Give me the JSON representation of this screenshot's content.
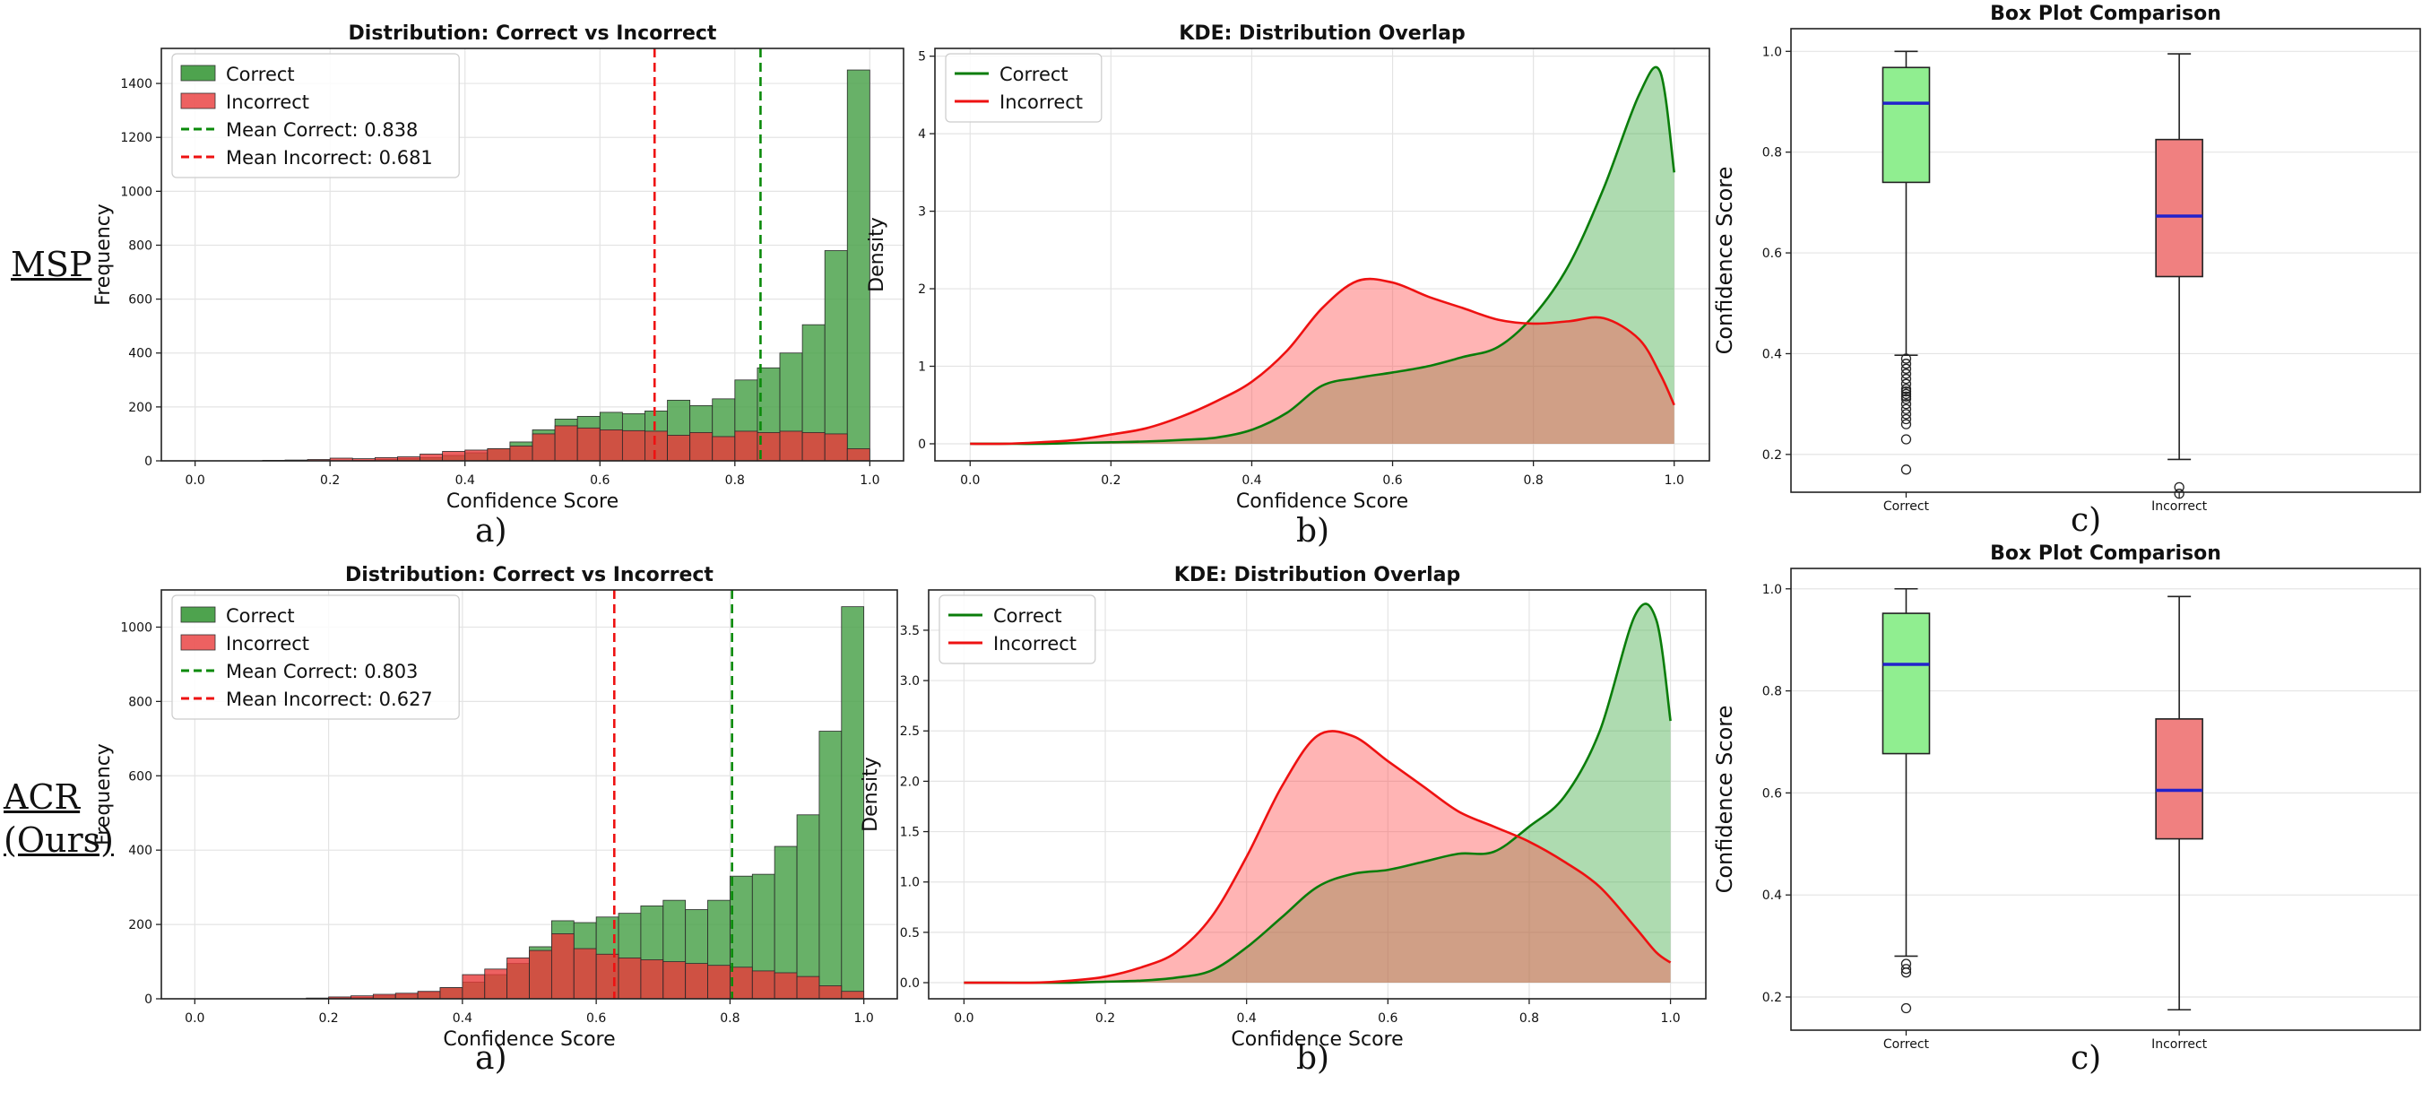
{
  "row_labels": [
    {
      "line1": "MSP",
      "line2": ""
    },
    {
      "line1": "ACR",
      "line2": "(Ours)"
    }
  ],
  "panel_letters": [
    "a)",
    "b)",
    "c)",
    "a)",
    "b)",
    "c)"
  ],
  "colors": {
    "correct_hist": "#4ea34e",
    "incorrect_hist": "#e83a3a",
    "correct_line": "#0a7d0a",
    "incorrect_line": "#ee1111",
    "correct_fill": "#a6d6a0",
    "incorrect_fill": "#f8a8a8",
    "overlap_fill": "#c4907a",
    "box_correct": "#90ee90",
    "box_incorrect": "#f08080",
    "median": "#2222cc"
  },
  "chart_data": [
    {
      "type": "bar",
      "kind": "histogram",
      "title": "Distribution: Correct vs Incorrect",
      "xlabel": "Confidence Score",
      "ylabel": "Frequency",
      "xlim": [
        -0.05,
        1.05
      ],
      "ylim": [
        0,
        1530
      ],
      "xticks": [
        "0.0",
        "0.2",
        "0.4",
        "0.6",
        "0.8",
        "1.0"
      ],
      "yticks": [
        "0",
        "200",
        "400",
        "600",
        "800",
        "1000",
        "1200",
        "1400"
      ],
      "bin_width": 0.0333,
      "bin_centers": [
        0.0167,
        0.05,
        0.0833,
        0.1167,
        0.15,
        0.1833,
        0.2167,
        0.25,
        0.2833,
        0.3167,
        0.35,
        0.3833,
        0.4167,
        0.45,
        0.4833,
        0.5167,
        0.55,
        0.5833,
        0.6167,
        0.65,
        0.6833,
        0.7167,
        0.75,
        0.7833,
        0.8167,
        0.85,
        0.8833,
        0.9167,
        0.95,
        0.9833
      ],
      "series": [
        {
          "name": "Correct",
          "values": [
            0,
            0,
            0,
            0,
            0,
            0,
            0,
            2,
            5,
            8,
            12,
            20,
            30,
            45,
            70,
            115,
            155,
            165,
            180,
            175,
            185,
            225,
            205,
            230,
            300,
            345,
            400,
            505,
            780,
            1450
          ]
        },
        {
          "name": "Incorrect",
          "values": [
            0,
            0,
            0,
            2,
            3,
            5,
            10,
            8,
            12,
            15,
            25,
            35,
            40,
            45,
            55,
            100,
            130,
            122,
            115,
            112,
            110,
            95,
            105,
            90,
            110,
            105,
            110,
            105,
            100,
            45
          ]
        }
      ],
      "mean_lines": [
        {
          "name": "Mean Correct: 0.838",
          "value": 0.838
        },
        {
          "name": "Mean Incorrect: 0.681",
          "value": 0.681
        }
      ],
      "legend": "top-left",
      "grid": true
    },
    {
      "type": "area",
      "kind": "kde",
      "title": "KDE: Distribution Overlap",
      "xlabel": "Confidence Score",
      "ylabel": "Density",
      "xlim": [
        -0.05,
        1.05
      ],
      "ylim": [
        -0.22,
        5.1
      ],
      "xticks": [
        "0.0",
        "0.2",
        "0.4",
        "0.6",
        "0.8",
        "1.0"
      ],
      "yticks": [
        "0",
        "1",
        "2",
        "3",
        "4",
        "5"
      ],
      "x": [
        0,
        0.05,
        0.1,
        0.15,
        0.2,
        0.25,
        0.3,
        0.35,
        0.4,
        0.45,
        0.5,
        0.55,
        0.6,
        0.65,
        0.7,
        0.75,
        0.8,
        0.85,
        0.9,
        0.95,
        0.98,
        1.0
      ],
      "series": [
        {
          "name": "Correct",
          "values": [
            0,
            0,
            0,
            0.01,
            0.02,
            0.03,
            0.05,
            0.08,
            0.18,
            0.4,
            0.75,
            0.85,
            0.92,
            1.0,
            1.12,
            1.25,
            1.65,
            2.3,
            3.3,
            4.5,
            4.8,
            3.5
          ]
        },
        {
          "name": "Incorrect",
          "values": [
            0,
            0,
            0.02,
            0.05,
            0.12,
            0.2,
            0.35,
            0.55,
            0.8,
            1.2,
            1.75,
            2.1,
            2.08,
            1.9,
            1.75,
            1.6,
            1.55,
            1.58,
            1.62,
            1.35,
            0.9,
            0.5
          ]
        }
      ],
      "legend": "top-left",
      "grid": true
    },
    {
      "type": "box",
      "title": "Box Plot Comparison",
      "xlabel": "",
      "ylabel": "Confidence Score",
      "ylim": [
        0.125,
        1.045
      ],
      "yticks": [
        "0.2",
        "0.4",
        "0.6",
        "0.8",
        "1.0"
      ],
      "categories": [
        "Correct",
        "Incorrect"
      ],
      "boxes": [
        {
          "q1": 0.74,
          "median": 0.897,
          "q3": 0.968,
          "whisker_low": 0.397,
          "whisker_high": 1.0,
          "outliers": [
            0.39,
            0.38,
            0.37,
            0.36,
            0.35,
            0.34,
            0.33,
            0.325,
            0.32,
            0.315,
            0.31,
            0.3,
            0.29,
            0.28,
            0.27,
            0.26,
            0.23,
            0.17
          ]
        },
        {
          "q1": 0.553,
          "median": 0.673,
          "q3": 0.825,
          "whisker_low": 0.19,
          "whisker_high": 0.995,
          "outliers": [
            0.135,
            0.122
          ]
        }
      ],
      "grid": true
    },
    {
      "type": "bar",
      "kind": "histogram",
      "title": "Distribution: Correct vs Incorrect",
      "xlabel": "Confidence Score",
      "ylabel": "Frequency",
      "xlim": [
        -0.05,
        1.05
      ],
      "ylim": [
        0,
        1100
      ],
      "xticks": [
        "0.0",
        "0.2",
        "0.4",
        "0.6",
        "0.8",
        "1.0"
      ],
      "yticks": [
        "0",
        "200",
        "400",
        "600",
        "800",
        "1000"
      ],
      "bin_width": 0.0333,
      "bin_centers": [
        0.0167,
        0.05,
        0.0833,
        0.1167,
        0.15,
        0.1833,
        0.2167,
        0.25,
        0.2833,
        0.3167,
        0.35,
        0.3833,
        0.4167,
        0.45,
        0.4833,
        0.5167,
        0.55,
        0.5833,
        0.6167,
        0.65,
        0.6833,
        0.7167,
        0.75,
        0.7833,
        0.8167,
        0.85,
        0.8833,
        0.9167,
        0.95,
        0.9833
      ],
      "series": [
        {
          "name": "Correct",
          "values": [
            0,
            0,
            0,
            0,
            0,
            0,
            2,
            4,
            8,
            12,
            18,
            30,
            45,
            65,
            95,
            140,
            210,
            205,
            220,
            230,
            250,
            265,
            240,
            265,
            330,
            335,
            410,
            495,
            720,
            1055
          ]
        },
        {
          "name": "Incorrect",
          "values": [
            0,
            0,
            0,
            0,
            0,
            2,
            5,
            8,
            12,
            15,
            20,
            30,
            65,
            80,
            110,
            130,
            175,
            135,
            120,
            110,
            105,
            100,
            95,
            90,
            85,
            75,
            70,
            60,
            35,
            20
          ]
        }
      ],
      "mean_lines": [
        {
          "name": "Mean Correct: 0.803",
          "value": 0.803
        },
        {
          "name": "Mean Incorrect: 0.627",
          "value": 0.627
        }
      ],
      "legend": "top-left",
      "grid": true
    },
    {
      "type": "area",
      "kind": "kde",
      "title": "KDE: Distribution Overlap",
      "xlabel": "Confidence Score",
      "ylabel": "Density",
      "xlim": [
        -0.05,
        1.05
      ],
      "ylim": [
        -0.16,
        3.9
      ],
      "xticks": [
        "0.0",
        "0.2",
        "0.4",
        "0.6",
        "0.8",
        "1.0"
      ],
      "yticks": [
        "0.0",
        "0.5",
        "1.0",
        "1.5",
        "2.0",
        "2.5",
        "3.0",
        "3.5"
      ],
      "x": [
        0,
        0.05,
        0.1,
        0.15,
        0.2,
        0.25,
        0.3,
        0.35,
        0.4,
        0.45,
        0.5,
        0.55,
        0.6,
        0.65,
        0.7,
        0.75,
        0.8,
        0.85,
        0.9,
        0.95,
        0.98,
        1.0
      ],
      "series": [
        {
          "name": "Correct",
          "values": [
            0,
            0,
            0,
            0,
            0.01,
            0.02,
            0.05,
            0.12,
            0.35,
            0.65,
            0.95,
            1.08,
            1.12,
            1.2,
            1.28,
            1.3,
            1.55,
            1.85,
            2.5,
            3.65,
            3.6,
            2.6
          ]
        },
        {
          "name": "Incorrect",
          "values": [
            0,
            0,
            0,
            0.02,
            0.06,
            0.15,
            0.3,
            0.65,
            1.25,
            1.95,
            2.45,
            2.45,
            2.2,
            1.95,
            1.7,
            1.55,
            1.4,
            1.2,
            0.95,
            0.55,
            0.3,
            0.2
          ]
        }
      ],
      "legend": "top-left",
      "grid": true
    },
    {
      "type": "box",
      "title": "Box Plot Comparison",
      "xlabel": "",
      "ylabel": "Confidence Score",
      "ylim": [
        0.135,
        1.04
      ],
      "yticks": [
        "0.2",
        "0.4",
        "0.6",
        "0.8",
        "1.0"
      ],
      "categories": [
        "Correct",
        "Incorrect"
      ],
      "boxes": [
        {
          "q1": 0.677,
          "median": 0.852,
          "q3": 0.952,
          "whisker_low": 0.28,
          "whisker_high": 1.0,
          "outliers": [
            0.265,
            0.255,
            0.248,
            0.178
          ]
        },
        {
          "q1": 0.51,
          "median": 0.605,
          "q3": 0.745,
          "whisker_low": 0.175,
          "whisker_high": 0.985,
          "outliers": []
        }
      ],
      "grid": true
    }
  ]
}
